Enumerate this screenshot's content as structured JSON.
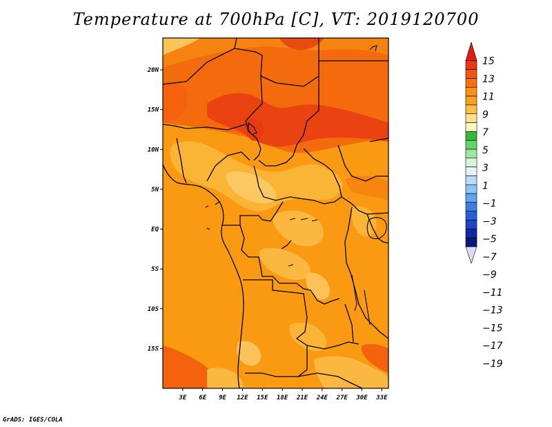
{
  "title": "Temperature at 700hPa [C], VT: 2019120700",
  "credit": "GrADS: IGES/COLA",
  "map": {
    "lon_range": [
      0,
      34
    ],
    "lat_range": [
      -20,
      24
    ],
    "lon_ticks": [
      {
        "value": 3,
        "label": "3E"
      },
      {
        "value": 6,
        "label": "6E"
      },
      {
        "value": 9,
        "label": "9E"
      },
      {
        "value": 12,
        "label": "12E"
      },
      {
        "value": 15,
        "label": "15E"
      },
      {
        "value": 18,
        "label": "18E"
      },
      {
        "value": 21,
        "label": "21E"
      },
      {
        "value": 24,
        "label": "24E"
      },
      {
        "value": 27,
        "label": "27E"
      },
      {
        "value": 30,
        "label": "30E"
      },
      {
        "value": 33,
        "label": "33E"
      }
    ],
    "lat_ticks": [
      {
        "value": 20,
        "label": "20N"
      },
      {
        "value": 15,
        "label": "15N"
      },
      {
        "value": 10,
        "label": "10N"
      },
      {
        "value": 5,
        "label": "5N"
      },
      {
        "value": 0,
        "label": "EQ"
      },
      {
        "value": -5,
        "label": "5S"
      },
      {
        "value": -10,
        "label": "10S"
      },
      {
        "value": -15,
        "label": "15S"
      }
    ]
  },
  "colorbar": {
    "labels": [
      "15",
      "13",
      "11",
      "9",
      "7",
      "5",
      "3",
      "1",
      "−1",
      "−3",
      "−5",
      "−7",
      "−9",
      "−11",
      "−13",
      "−15",
      "−17",
      "−19"
    ],
    "colors_top_to_bottom": [
      "#e83a12",
      "#f2560c",
      "#f76f0e",
      "#f99212",
      "#f9a21a",
      "#fbbe45",
      "#fde08a",
      "#fdf8c0",
      "#36b83c",
      "#63d46a",
      "#9ee79c",
      "#d6f6d6",
      "#e4f2fc",
      "#b8dcf8",
      "#8cc4f4",
      "#5da4ec",
      "#3c7ee2",
      "#2a5ed8",
      "#1c44c4",
      "#0e2aa6"
    ],
    "top_arrow_color": "#e01e10",
    "bottom_arrow_color": "#d8dcf8",
    "bottom_dark_color": "#0b1778"
  }
}
